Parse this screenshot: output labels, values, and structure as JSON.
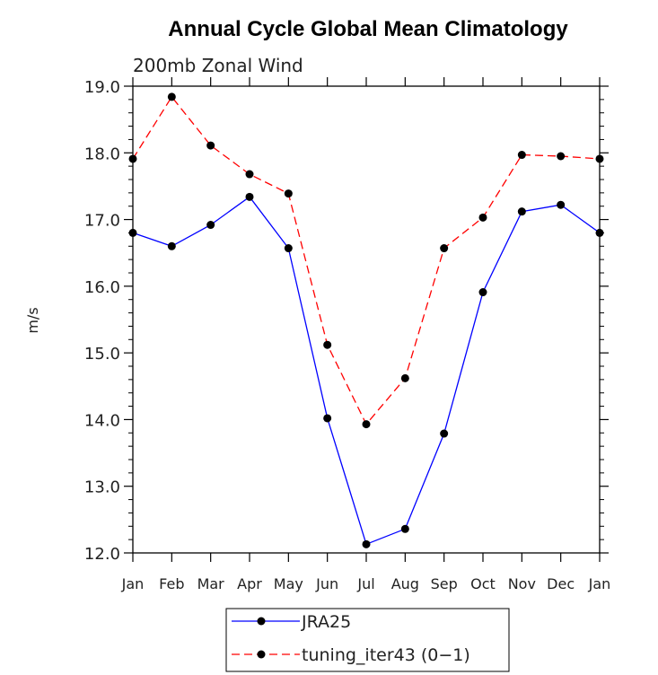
{
  "chart_data": {
    "type": "line",
    "title": "Annual Cycle Global Mean Climatology",
    "subtitle": "200mb Zonal Wind",
    "ylabel": "m/s",
    "xlabel": "",
    "ylim": [
      12.0,
      19.0
    ],
    "yticks": [
      "12.0",
      "13.0",
      "14.0",
      "15.0",
      "16.0",
      "17.0",
      "18.0",
      "19.0"
    ],
    "categories": [
      "Jan",
      "Feb",
      "Mar",
      "Apr",
      "May",
      "Jun",
      "Jul",
      "Aug",
      "Sep",
      "Oct",
      "Nov",
      "Dec",
      "Jan"
    ],
    "series": [
      {
        "name": "JRA25",
        "color": "#0000ff",
        "dash": "solid",
        "values": [
          16.8,
          16.6,
          16.92,
          17.34,
          16.57,
          14.02,
          12.13,
          12.36,
          13.79,
          15.91,
          17.12,
          17.22,
          16.8
        ]
      },
      {
        "name": "tuning_iter43 (0-1)",
        "color": "#ff0000",
        "dash": "dashed",
        "values": [
          17.91,
          18.84,
          18.11,
          17.68,
          17.39,
          15.12,
          13.93,
          14.62,
          16.57,
          17.03,
          17.97,
          17.95,
          17.91
        ]
      }
    ],
    "legend": [
      {
        "label": "JRA25"
      },
      {
        "label": "tuning_iter43 (0−1)"
      }
    ],
    "legend_position": "bottom-center",
    "grid": false
  }
}
